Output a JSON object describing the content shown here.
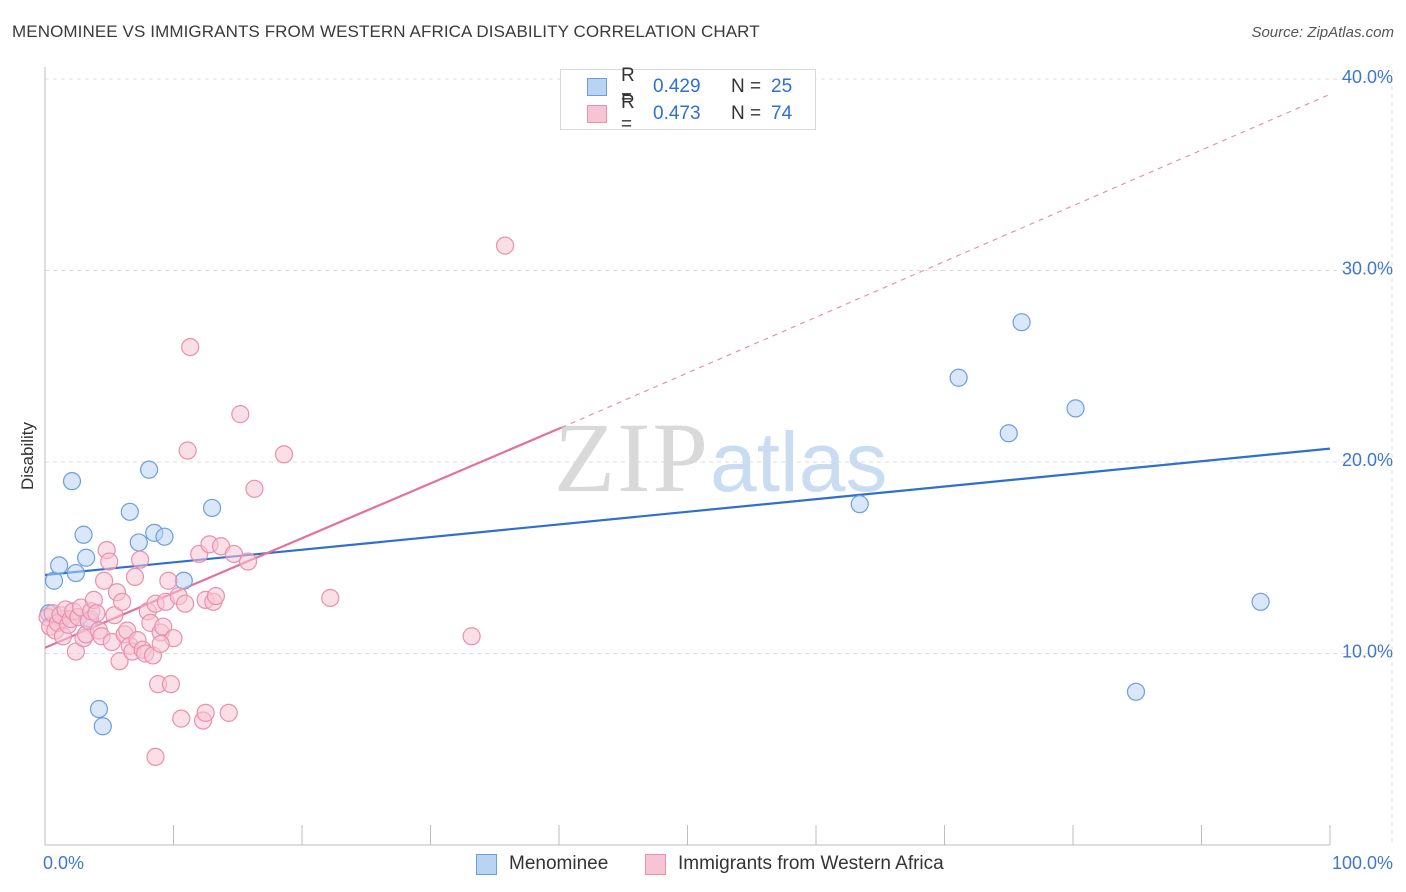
{
  "title": "MENOMINEE VS IMMIGRANTS FROM WESTERN AFRICA DISABILITY CORRELATION CHART",
  "source": "Source: ZipAtlas.com",
  "watermark": {
    "zip": "ZIP",
    "atlas": "atlas"
  },
  "colors": {
    "blue_fill": "#b9d3f3",
    "blue_stroke": "#6b9fe0",
    "blue_line": "#2f6fd0",
    "pink_fill": "#f7c4d4",
    "pink_stroke": "#ea8fae",
    "pink_line": "#e5709a",
    "grid": "#dcdcdc",
    "tick_text": "#3f77cf"
  },
  "legend": [
    {
      "series": "Menominee",
      "r_label": "R =",
      "r_value": "0.429",
      "n_label": "N =",
      "n_value": "25"
    },
    {
      "series": "Immigrants from Western Africa",
      "r_label": "R =",
      "r_value": "0.473",
      "n_label": "N =",
      "n_value": "74"
    }
  ],
  "chart_data": {
    "type": "scatter",
    "title": "MENOMINEE VS IMMIGRANTS FROM WESTERN AFRICA DISABILITY CORRELATION CHART",
    "xlabel": "",
    "ylabel": "Disability",
    "xlim": [
      0,
      100
    ],
    "ylim": [
      0,
      40
    ],
    "x_tick_labels": [
      "0.0%",
      "100.0%"
    ],
    "y_ticks": [
      10,
      20,
      30,
      40
    ],
    "y_tick_labels": [
      "10.0%",
      "20.0%",
      "30.0%",
      "40.0%"
    ],
    "grid": true,
    "legend_position": "top-center",
    "series": [
      {
        "name": "Menominee",
        "r": 0.429,
        "n": 25,
        "trend": {
          "x": [
            0,
            100
          ],
          "y": [
            14.1,
            20.7
          ]
        },
        "points": [
          [
            0.7,
            13.8
          ],
          [
            1.1,
            14.6
          ],
          [
            2.1,
            19.0
          ],
          [
            2.4,
            14.2
          ],
          [
            3.0,
            16.2
          ],
          [
            3.2,
            15.0
          ],
          [
            3.5,
            11.8
          ],
          [
            4.2,
            7.1
          ],
          [
            4.5,
            6.2
          ],
          [
            6.6,
            17.4
          ],
          [
            7.3,
            15.8
          ],
          [
            8.1,
            19.6
          ],
          [
            8.5,
            16.3
          ],
          [
            9.3,
            16.1
          ],
          [
            10.8,
            13.8
          ],
          [
            13.0,
            17.6
          ],
          [
            71.1,
            24.4
          ],
          [
            75.0,
            21.5
          ],
          [
            76.0,
            27.3
          ],
          [
            80.2,
            22.8
          ],
          [
            84.9,
            8.0
          ],
          [
            94.6,
            12.7
          ],
          [
            63.4,
            17.8
          ],
          [
            1.3,
            11.8
          ],
          [
            0.3,
            12.1
          ]
        ]
      },
      {
        "name": "Immigrants from Western Africa",
        "r": 0.473,
        "n": 74,
        "trend": {
          "x": [
            0,
            40.2
          ],
          "y": [
            10.3,
            21.8
          ]
        },
        "trend_extension": {
          "x": [
            40.2,
            100
          ],
          "y": [
            21.8,
            39.2
          ]
        },
        "points": [
          [
            0.2,
            11.9
          ],
          [
            0.4,
            11.4
          ],
          [
            0.6,
            12.1
          ],
          [
            0.8,
            11.2
          ],
          [
            1.0,
            11.6
          ],
          [
            1.2,
            12.0
          ],
          [
            1.4,
            10.9
          ],
          [
            1.6,
            12.3
          ],
          [
            1.8,
            11.5
          ],
          [
            2.0,
            11.8
          ],
          [
            2.2,
            12.2
          ],
          [
            2.4,
            10.1
          ],
          [
            2.6,
            11.9
          ],
          [
            2.8,
            12.4
          ],
          [
            3.0,
            10.8
          ],
          [
            3.2,
            11.0
          ],
          [
            3.4,
            11.7
          ],
          [
            3.6,
            12.2
          ],
          [
            3.8,
            12.8
          ],
          [
            4.0,
            12.1
          ],
          [
            4.2,
            11.2
          ],
          [
            4.4,
            10.9
          ],
          [
            4.6,
            13.8
          ],
          [
            4.8,
            15.4
          ],
          [
            5.0,
            14.8
          ],
          [
            5.2,
            10.6
          ],
          [
            5.4,
            12.0
          ],
          [
            5.6,
            13.2
          ],
          [
            5.8,
            9.6
          ],
          [
            6.0,
            12.7
          ],
          [
            6.2,
            11.0
          ],
          [
            6.4,
            11.2
          ],
          [
            6.6,
            10.4
          ],
          [
            6.8,
            10.1
          ],
          [
            7.0,
            14.0
          ],
          [
            7.2,
            10.7
          ],
          [
            7.4,
            14.9
          ],
          [
            7.6,
            10.2
          ],
          [
            7.8,
            10.0
          ],
          [
            8.0,
            12.2
          ],
          [
            8.2,
            11.6
          ],
          [
            8.4,
            9.9
          ],
          [
            8.6,
            12.6
          ],
          [
            8.8,
            8.4
          ],
          [
            9.0,
            11.1
          ],
          [
            9.2,
            11.4
          ],
          [
            9.4,
            12.7
          ],
          [
            9.6,
            13.8
          ],
          [
            9.8,
            8.4
          ],
          [
            10.0,
            10.8
          ],
          [
            10.4,
            13.0
          ],
          [
            10.9,
            12.6
          ],
          [
            11.3,
            26.0
          ],
          [
            11.1,
            20.6
          ],
          [
            12.0,
            15.2
          ],
          [
            12.5,
            12.8
          ],
          [
            12.8,
            15.7
          ],
          [
            13.1,
            12.7
          ],
          [
            13.3,
            13.0
          ],
          [
            13.7,
            15.6
          ],
          [
            14.3,
            6.9
          ],
          [
            14.7,
            15.2
          ],
          [
            15.2,
            22.5
          ],
          [
            15.8,
            14.8
          ],
          [
            16.3,
            18.6
          ],
          [
            18.6,
            20.4
          ],
          [
            22.2,
            12.9
          ],
          [
            33.2,
            10.9
          ],
          [
            35.8,
            31.3
          ],
          [
            12.3,
            6.5
          ],
          [
            8.6,
            4.6
          ],
          [
            10.6,
            6.6
          ],
          [
            12.5,
            6.9
          ],
          [
            9.0,
            10.5
          ]
        ]
      }
    ]
  }
}
